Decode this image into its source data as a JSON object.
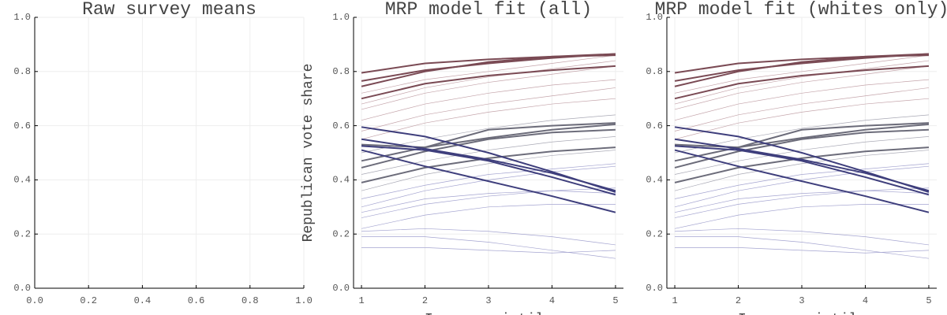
{
  "chart_data": [
    {
      "type": "line",
      "title": "Raw survey means",
      "xlim": [
        0,
        1
      ],
      "ylim": [
        0,
        1
      ],
      "xticks": [
        {
          "value": 0,
          "label": "0.0"
        },
        0.2,
        0.4,
        0.6,
        0.8,
        {
          "value": 1,
          "label": "1.0"
        }
      ],
      "yticks": [
        {
          "value": 0,
          "label": "0.0"
        },
        0.2,
        0.4,
        0.6,
        0.8,
        {
          "value": 1,
          "label": "1.0"
        }
      ],
      "grid": true,
      "x": [],
      "series": []
    },
    {
      "type": "line",
      "title": "MRP model fit (all)",
      "xlabel": "Income quintile",
      "ylabel": "Republican vote share",
      "xlim": [
        0.875,
        5.125
      ],
      "ylim": [
        0,
        1
      ],
      "xticks": [
        1,
        2,
        3,
        4,
        5
      ],
      "yticks": [
        {
          "value": 0,
          "label": "0.0"
        },
        0.2,
        0.4,
        0.6,
        0.8,
        {
          "value": 1,
          "label": "1.0"
        }
      ],
      "grid": true,
      "x": [
        1,
        2,
        3,
        4,
        5
      ],
      "series": [
        {
          "color": "#c4a4aa",
          "linewidth": 0.7,
          "values": [
            0.66,
            0.72,
            0.76,
            0.79,
            0.82
          ]
        },
        {
          "color": "#c4a4aa",
          "linewidth": 0.7,
          "values": [
            0.62,
            0.68,
            0.72,
            0.75,
            0.77
          ]
        },
        {
          "color": "#c4a4aa",
          "linewidth": 0.7,
          "values": [
            0.58,
            0.64,
            0.68,
            0.71,
            0.74
          ]
        },
        {
          "color": "#c4a4aa",
          "linewidth": 0.7,
          "values": [
            0.68,
            0.74,
            0.78,
            0.81,
            0.84
          ]
        },
        {
          "color": "#c4a4aa",
          "linewidth": 0.7,
          "values": [
            0.55,
            0.61,
            0.65,
            0.68,
            0.7
          ]
        },
        {
          "color": "#c4a4aa",
          "linewidth": 0.7,
          "values": [
            0.72,
            0.77,
            0.8,
            0.83,
            0.86
          ]
        },
        {
          "color": "#a8a8b4",
          "linewidth": 0.7,
          "values": [
            0.5,
            0.55,
            0.59,
            0.62,
            0.64
          ]
        },
        {
          "color": "#a8a8b4",
          "linewidth": 0.7,
          "values": [
            0.42,
            0.47,
            0.51,
            0.54,
            0.56
          ]
        },
        {
          "color": "#a8a8b4",
          "linewidth": 0.7,
          "values": [
            0.36,
            0.42,
            0.46,
            0.49,
            0.51
          ]
        },
        {
          "color": "#a4a4d0",
          "linewidth": 0.7,
          "values": [
            0.3,
            0.36,
            0.4,
            0.43,
            0.45
          ]
        },
        {
          "color": "#a4a4d0",
          "linewidth": 0.7,
          "values": [
            0.33,
            0.38,
            0.42,
            0.44,
            0.46
          ]
        },
        {
          "color": "#a4a4d0",
          "linewidth": 0.7,
          "values": [
            0.26,
            0.31,
            0.34,
            0.36,
            0.37
          ]
        },
        {
          "color": "#a4a4d0",
          "linewidth": 0.7,
          "values": [
            0.22,
            0.27,
            0.3,
            0.31,
            0.31
          ]
        },
        {
          "color": "#a4a4d0",
          "linewidth": 0.7,
          "values": [
            0.21,
            0.22,
            0.21,
            0.19,
            0.16
          ]
        },
        {
          "color": "#a4a4d0",
          "linewidth": 0.7,
          "values": [
            0.19,
            0.19,
            0.17,
            0.14,
            0.11
          ]
        },
        {
          "color": "#a4a4d0",
          "linewidth": 0.7,
          "values": [
            0.15,
            0.15,
            0.14,
            0.13,
            0.14
          ]
        },
        {
          "color": "#a4a4d0",
          "linewidth": 0.7,
          "values": [
            0.28,
            0.33,
            0.35,
            0.36,
            0.35
          ]
        },
        {
          "color": "#7a4a54",
          "linewidth": 2,
          "values": [
            0.795,
            0.83,
            0.845,
            0.855,
            0.86
          ]
        },
        {
          "color": "#7a4a54",
          "linewidth": 2,
          "values": [
            0.765,
            0.805,
            0.83,
            0.85,
            0.865
          ]
        },
        {
          "color": "#7a4a54",
          "linewidth": 2,
          "values": [
            0.745,
            0.8,
            0.835,
            0.855,
            0.865
          ]
        },
        {
          "color": "#7a4a54",
          "linewidth": 2,
          "values": [
            0.7,
            0.755,
            0.785,
            0.805,
            0.82
          ]
        },
        {
          "color": "#6c6c7a",
          "linewidth": 2,
          "values": [
            0.53,
            0.52,
            0.585,
            0.6,
            0.61
          ]
        },
        {
          "color": "#6c6c7a",
          "linewidth": 2,
          "values": [
            0.47,
            0.52,
            0.555,
            0.585,
            0.605
          ]
        },
        {
          "color": "#6c6c7a",
          "linewidth": 2,
          "values": [
            0.445,
            0.505,
            0.55,
            0.575,
            0.585
          ]
        },
        {
          "color": "#6c6c7a",
          "linewidth": 2,
          "values": [
            0.39,
            0.445,
            0.48,
            0.505,
            0.52
          ]
        },
        {
          "color": "#3e3e7c",
          "linewidth": 2,
          "values": [
            0.595,
            0.56,
            0.5,
            0.43,
            0.355
          ]
        },
        {
          "color": "#3e3e7c",
          "linewidth": 2,
          "values": [
            0.55,
            0.515,
            0.475,
            0.425,
            0.36
          ]
        },
        {
          "color": "#3e3e7c",
          "linewidth": 2,
          "values": [
            0.525,
            0.51,
            0.47,
            0.41,
            0.345
          ]
        },
        {
          "color": "#3e3e7c",
          "linewidth": 2,
          "values": [
            0.51,
            0.45,
            0.395,
            0.34,
            0.28
          ]
        }
      ]
    },
    {
      "type": "line",
      "title": "MRP model fit (whites only)",
      "xlabel": "Income quintile",
      "xlim": [
        0.875,
        5.125
      ],
      "ylim": [
        0,
        1
      ],
      "xticks": [
        1,
        2,
        3,
        4,
        5
      ],
      "yticks": [
        {
          "value": 0,
          "label": "0.0"
        },
        0.2,
        0.4,
        0.6,
        0.8,
        {
          "value": 1,
          "label": "1.0"
        }
      ],
      "grid": true,
      "x": [
        1,
        2,
        3,
        4,
        5
      ],
      "series": [
        {
          "color": "#c4a4aa",
          "linewidth": 0.7,
          "values": [
            0.66,
            0.72,
            0.76,
            0.79,
            0.82
          ]
        },
        {
          "color": "#c4a4aa",
          "linewidth": 0.7,
          "values": [
            0.62,
            0.68,
            0.72,
            0.75,
            0.77
          ]
        },
        {
          "color": "#c4a4aa",
          "linewidth": 0.7,
          "values": [
            0.58,
            0.64,
            0.68,
            0.71,
            0.74
          ]
        },
        {
          "color": "#c4a4aa",
          "linewidth": 0.7,
          "values": [
            0.68,
            0.74,
            0.78,
            0.81,
            0.84
          ]
        },
        {
          "color": "#c4a4aa",
          "linewidth": 0.7,
          "values": [
            0.55,
            0.61,
            0.65,
            0.68,
            0.7
          ]
        },
        {
          "color": "#c4a4aa",
          "linewidth": 0.7,
          "values": [
            0.72,
            0.77,
            0.8,
            0.83,
            0.86
          ]
        },
        {
          "color": "#a8a8b4",
          "linewidth": 0.7,
          "values": [
            0.5,
            0.55,
            0.59,
            0.62,
            0.64
          ]
        },
        {
          "color": "#a8a8b4",
          "linewidth": 0.7,
          "values": [
            0.42,
            0.47,
            0.51,
            0.54,
            0.56
          ]
        },
        {
          "color": "#a8a8b4",
          "linewidth": 0.7,
          "values": [
            0.36,
            0.42,
            0.46,
            0.49,
            0.51
          ]
        },
        {
          "color": "#a4a4d0",
          "linewidth": 0.7,
          "values": [
            0.3,
            0.36,
            0.4,
            0.43,
            0.45
          ]
        },
        {
          "color": "#a4a4d0",
          "linewidth": 0.7,
          "values": [
            0.33,
            0.38,
            0.42,
            0.44,
            0.46
          ]
        },
        {
          "color": "#a4a4d0",
          "linewidth": 0.7,
          "values": [
            0.26,
            0.31,
            0.34,
            0.36,
            0.37
          ]
        },
        {
          "color": "#a4a4d0",
          "linewidth": 0.7,
          "values": [
            0.22,
            0.27,
            0.3,
            0.31,
            0.31
          ]
        },
        {
          "color": "#a4a4d0",
          "linewidth": 0.7,
          "values": [
            0.21,
            0.22,
            0.21,
            0.19,
            0.16
          ]
        },
        {
          "color": "#a4a4d0",
          "linewidth": 0.7,
          "values": [
            0.19,
            0.19,
            0.17,
            0.14,
            0.11
          ]
        },
        {
          "color": "#a4a4d0",
          "linewidth": 0.7,
          "values": [
            0.15,
            0.15,
            0.14,
            0.13,
            0.14
          ]
        },
        {
          "color": "#a4a4d0",
          "linewidth": 0.7,
          "values": [
            0.28,
            0.33,
            0.35,
            0.36,
            0.35
          ]
        },
        {
          "color": "#7a4a54",
          "linewidth": 2,
          "values": [
            0.795,
            0.83,
            0.845,
            0.855,
            0.86
          ]
        },
        {
          "color": "#7a4a54",
          "linewidth": 2,
          "values": [
            0.765,
            0.805,
            0.83,
            0.85,
            0.865
          ]
        },
        {
          "color": "#7a4a54",
          "linewidth": 2,
          "values": [
            0.745,
            0.8,
            0.835,
            0.855,
            0.865
          ]
        },
        {
          "color": "#7a4a54",
          "linewidth": 2,
          "values": [
            0.7,
            0.755,
            0.785,
            0.805,
            0.82
          ]
        },
        {
          "color": "#6c6c7a",
          "linewidth": 2,
          "values": [
            0.53,
            0.52,
            0.585,
            0.6,
            0.61
          ]
        },
        {
          "color": "#6c6c7a",
          "linewidth": 2,
          "values": [
            0.47,
            0.52,
            0.555,
            0.585,
            0.605
          ]
        },
        {
          "color": "#6c6c7a",
          "linewidth": 2,
          "values": [
            0.445,
            0.505,
            0.55,
            0.575,
            0.585
          ]
        },
        {
          "color": "#6c6c7a",
          "linewidth": 2,
          "values": [
            0.39,
            0.445,
            0.48,
            0.505,
            0.52
          ]
        },
        {
          "color": "#3e3e7c",
          "linewidth": 2,
          "values": [
            0.595,
            0.56,
            0.5,
            0.43,
            0.355
          ]
        },
        {
          "color": "#3e3e7c",
          "linewidth": 2,
          "values": [
            0.55,
            0.515,
            0.475,
            0.425,
            0.36
          ]
        },
        {
          "color": "#3e3e7c",
          "linewidth": 2,
          "values": [
            0.525,
            0.51,
            0.47,
            0.41,
            0.345
          ]
        },
        {
          "color": "#3e3e7c",
          "linewidth": 2,
          "values": [
            0.51,
            0.45,
            0.395,
            0.34,
            0.28
          ]
        }
      ]
    }
  ]
}
